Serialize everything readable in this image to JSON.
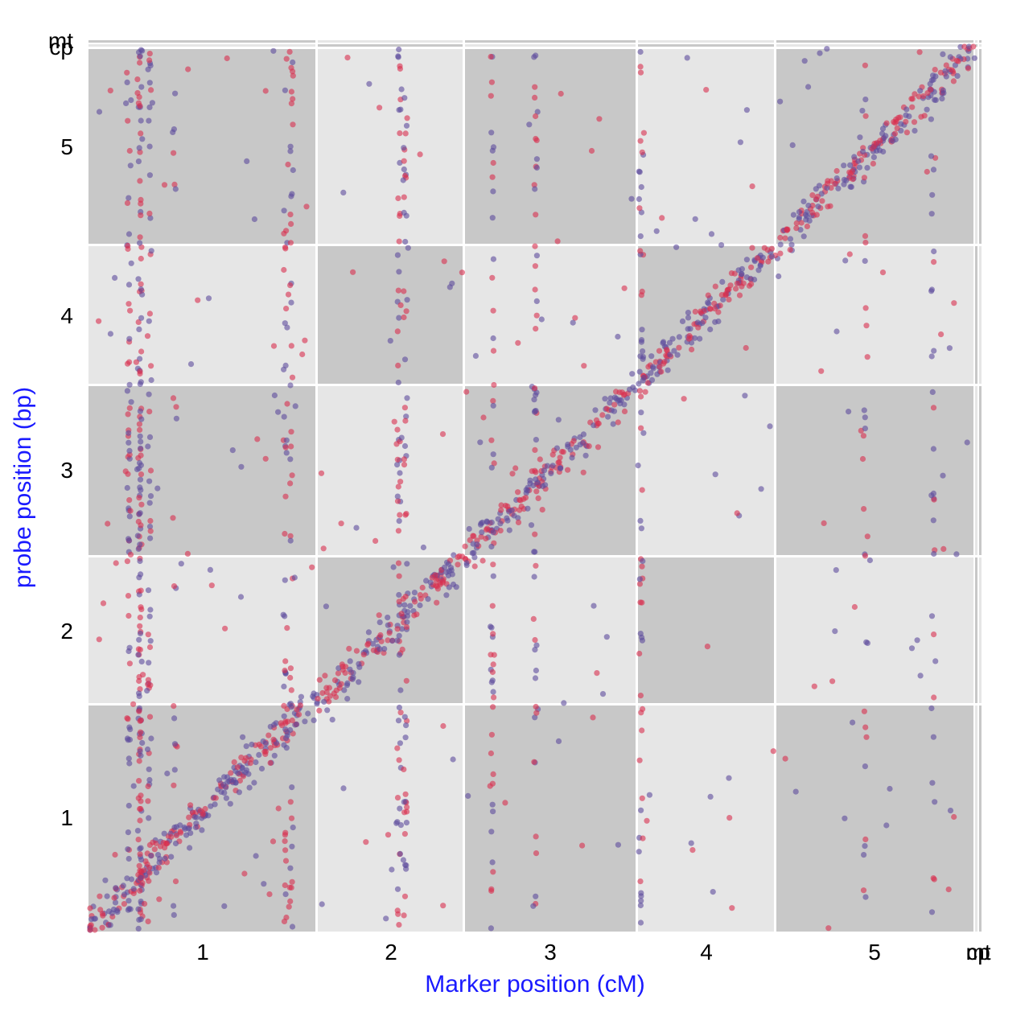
{
  "chart_data": {
    "type": "scatter",
    "xlabel": "Marker position (cM)",
    "ylabel": "probe position (bp)",
    "x_chromosomes": [
      "1",
      "2",
      "3",
      "4",
      "5",
      "cp",
      "mt"
    ],
    "y_chromosomes": [
      "1",
      "2",
      "3",
      "4",
      "5",
      "cp",
      "mt"
    ],
    "grid": false,
    "background_colors": {
      "dark": "#c8c8c8",
      "light": "#e6e6e6",
      "separator": "#ffffff"
    },
    "series_colors": [
      "#5e4b9c",
      "#d92e4f"
    ],
    "structure": {
      "diagonal_cis_eqtl": "strong positive band along the diagonal in every chromosome pair",
      "trans_hotspots": "vertical stripes of points at fixed marker positions"
    }
  }
}
